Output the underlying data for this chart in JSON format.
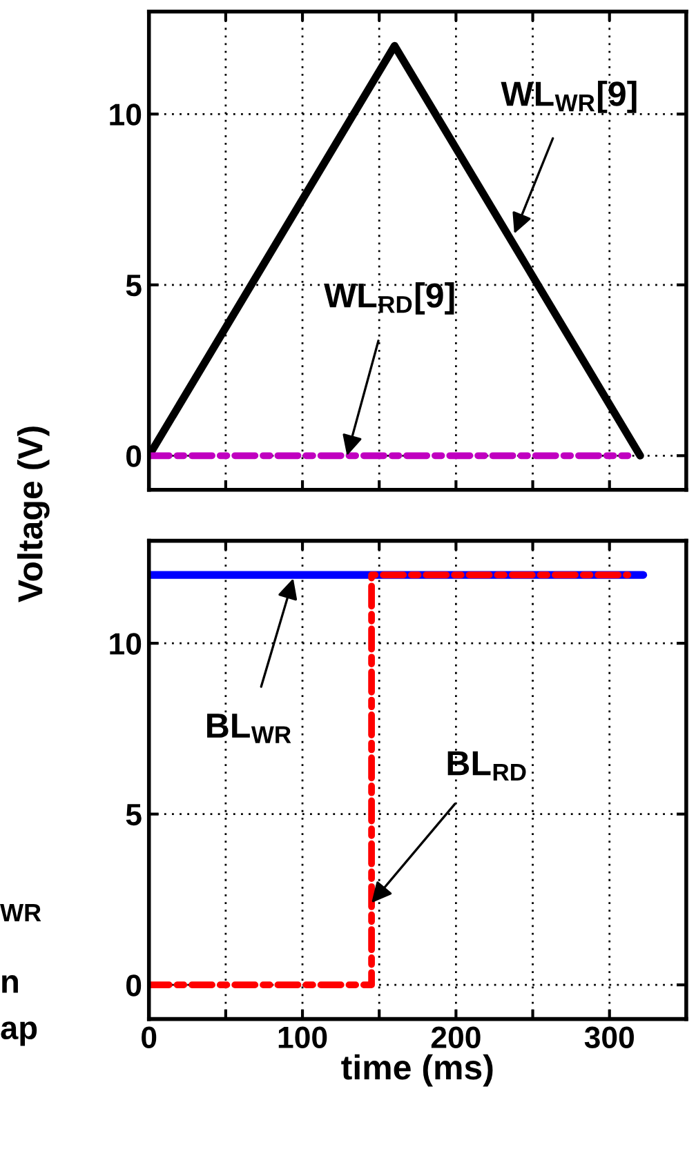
{
  "chart_data": [
    {
      "type": "line",
      "ylabel": "Voltage (V)",
      "xlim": [
        0,
        350
      ],
      "ylim": [
        -1,
        13
      ],
      "xticks": [
        {
          "value": 0,
          "label": null
        },
        {
          "value": 50,
          "label": null
        },
        {
          "value": 100,
          "label": null
        },
        {
          "value": 150,
          "label": null
        },
        {
          "value": 200,
          "label": null
        },
        {
          "value": 250,
          "label": null
        },
        {
          "value": 300,
          "label": null
        }
      ],
      "yticks": [
        0,
        5,
        10
      ],
      "grid": true,
      "tick_labels": "y",
      "series": [
        {
          "x": [
            0,
            160,
            320
          ],
          "values": [
            0,
            12,
            0
          ],
          "color": "#000000",
          "line_style": "solid"
        },
        {
          "x": [
            0,
            312
          ],
          "values": [
            0,
            0
          ],
          "color": "#c000c0",
          "line_style": "dashed"
        }
      ],
      "annotations": [
        {
          "text": "WL$_{WR}$[9]",
          "x": 238,
          "y": 6.5
        },
        {
          "text": "WL$_{RD}$[9]",
          "x": 129,
          "y": 0
        }
      ]
    },
    {
      "type": "line",
      "xlabel": "time (ms)",
      "xlim": [
        0,
        350
      ],
      "ylim": [
        -1,
        13
      ],
      "xticks": [
        0,
        100,
        200,
        300,
        {
          "value": 50,
          "label": null
        },
        {
          "value": 150,
          "label": null
        },
        {
          "value": 250,
          "label": null
        }
      ],
      "yticks": [
        0,
        5,
        10
      ],
      "grid": true,
      "series": [
        {
          "x": [
            0,
            322
          ],
          "values": [
            12,
            12
          ],
          "color": "#0000ff",
          "line_style": "solid"
        },
        {
          "x": [
            0,
            145,
            145,
            312
          ],
          "values": [
            0,
            0,
            12,
            12
          ],
          "color": "#ff0000",
          "line_style": "dashed"
        }
      ],
      "annotations": [
        {
          "text": "BL$_{WR}$",
          "x": 94,
          "y": 11.9
        },
        {
          "text": "BL$_{RD}$",
          "x": 145,
          "y": 2.4
        },
        "WR",
        "n",
        "ap"
      ]
    }
  ]
}
